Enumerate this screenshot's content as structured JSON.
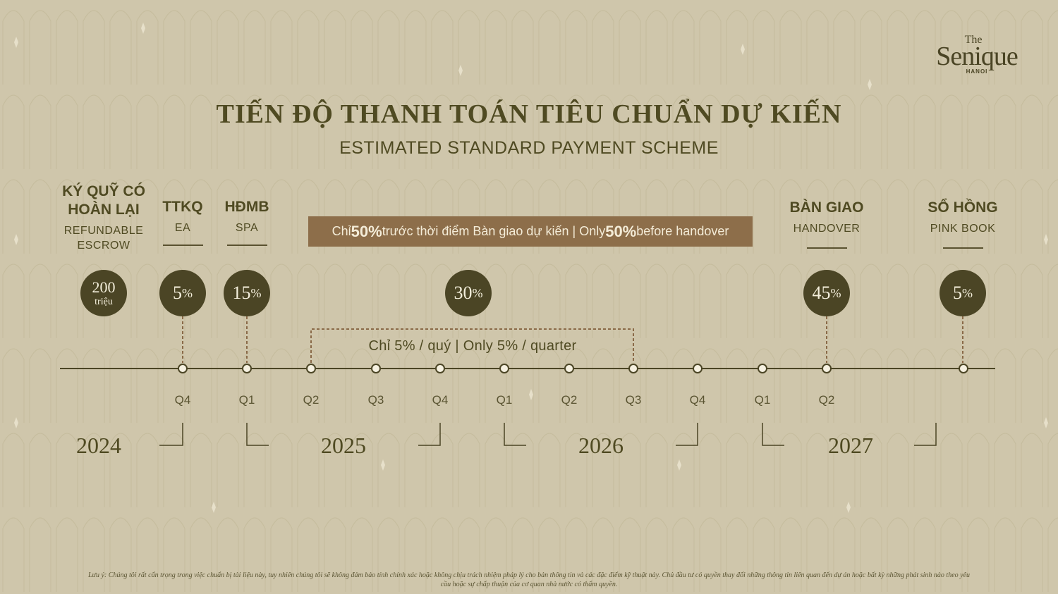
{
  "logo": {
    "the": "The",
    "name": "Senique",
    "city": "HANOI"
  },
  "title": "TIẾN ĐỘ THANH TOÁN TIÊU CHUẨN DỰ KIẾN",
  "subtitle": "ESTIMATED STANDARD PAYMENT SCHEME",
  "milestones": [
    {
      "head_line1": "KÝ QUỸ CÓ",
      "head_line2": "HOÀN LẠI",
      "sub_line1": "REFUNDABLE",
      "sub_line2": "ESCROW",
      "amount_big": "200",
      "amount_small": "triệu"
    },
    {
      "head": "TTKQ",
      "sub": "EA",
      "value": "5",
      "unit": "%"
    },
    {
      "head": "HĐMB",
      "sub": "SPA",
      "value": "15",
      "unit": "%"
    },
    {
      "value": "30",
      "unit": "%"
    },
    {
      "head": "BÀN GIAO",
      "sub": "HANDOVER",
      "value": "45",
      "unit": "%"
    },
    {
      "head": "SỔ HỒNG",
      "sub": "PINK BOOK",
      "value": "5",
      "unit": "%"
    }
  ],
  "banner": {
    "pre": "Chỉ ",
    "pct1": "50%",
    "mid": " trước thời điểm Bàn giao dự kiến | Only ",
    "pct2": "50%",
    "post": " before handover"
  },
  "quarter_note": "Chỉ 5% / quý | Only 5% / quarter",
  "quarters": [
    "Q4",
    "Q1",
    "Q2",
    "Q3",
    "Q4",
    "Q1",
    "Q2",
    "Q3",
    "Q4",
    "Q1",
    "Q2"
  ],
  "years": [
    "2024",
    "2025",
    "2026",
    "2027"
  ],
  "disclaimer_line1": "Lưu ý: Chúng tôi rất cẩn trọng trong việc chuẩn bị tài liệu này, tuy nhiên chúng tôi sẽ không đảm bảo tính chính xác hoặc không chịu trách nhiệm pháp lý cho bản thông tin và các đặc điểm kỹ thuật này. Chủ đầu tư có quyền thay đổi những thông tin liên quan đến dự án hoặc bất kỳ những phát sinh nào theo yêu",
  "disclaimer_line2": "cầu hoặc sự chấp thuận của cơ quan nhà nước có thẩm quyền.",
  "colors": {
    "background": "#cfc6ab",
    "primary": "#4b4525",
    "banner": "#8d6e4a",
    "text": "#4f4a22"
  }
}
